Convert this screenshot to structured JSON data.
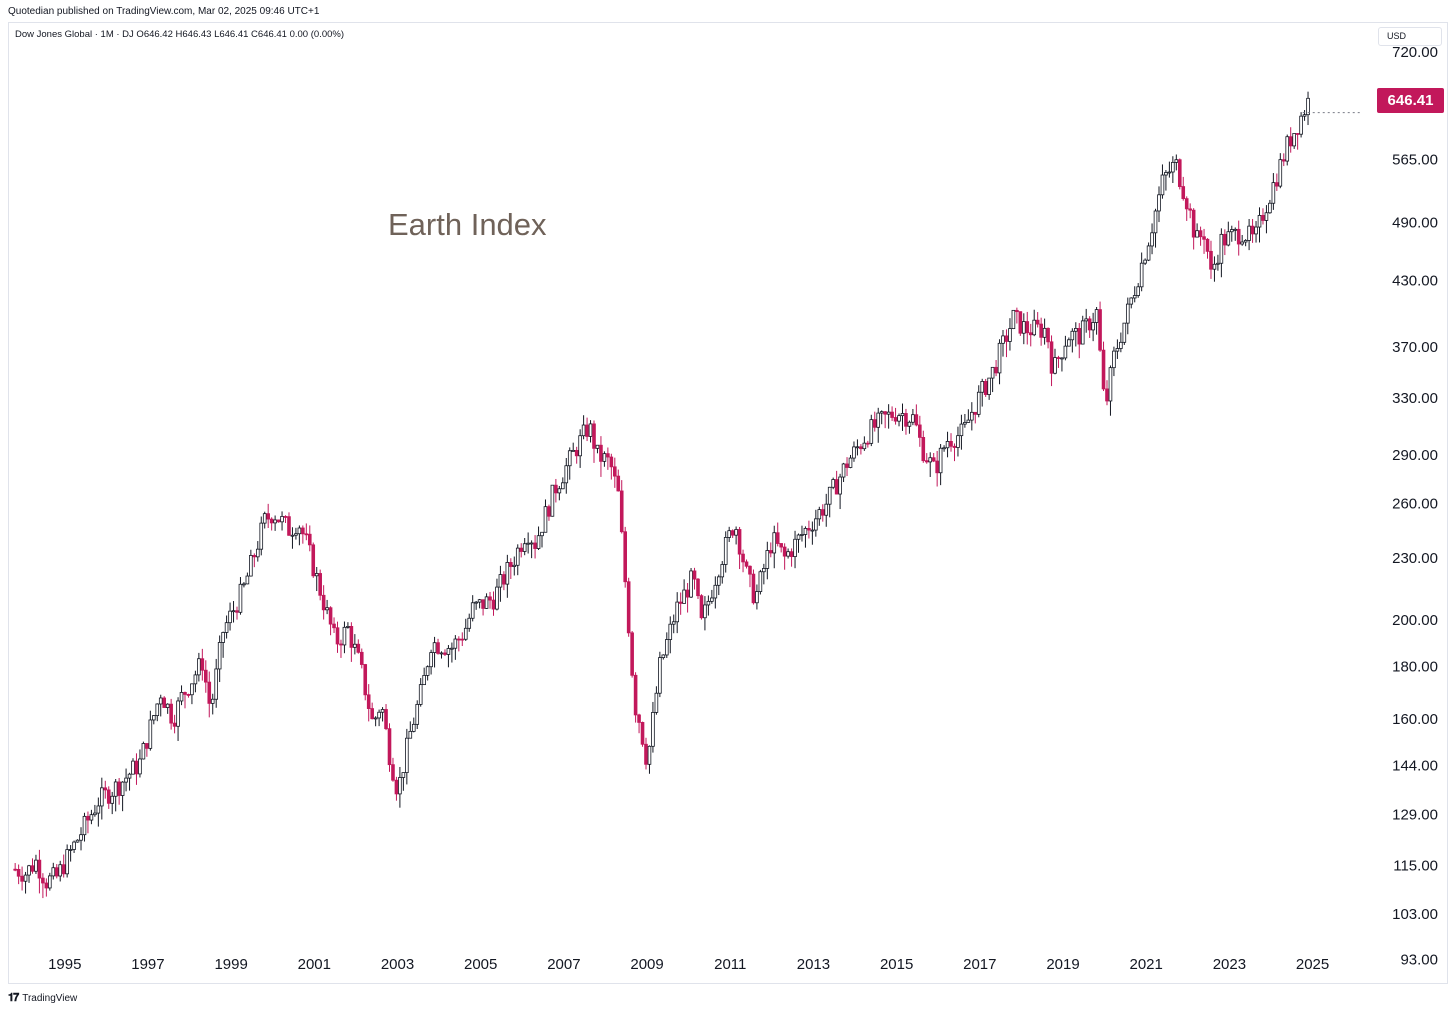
{
  "header": {
    "published": "Quotedian published on TradingView.com, Mar 02, 2025 09:46 UTC+1"
  },
  "legend": {
    "text": "Dow Jones Global · 1M · DJ  O646.42  H646.43  L646.41  C646.41  0.00 (0.00%)"
  },
  "currency": {
    "label": "USD"
  },
  "footer": {
    "brand": "TradingView",
    "logo_icon": "tradingview-logo-icon"
  },
  "colors": {
    "up": "#131722",
    "down": "#c2185b",
    "badge": "#c2185b",
    "annotation": "#6f6259"
  },
  "chart_data": {
    "type": "candlestick",
    "title": "",
    "annotation": "Earth Index",
    "y_scale": "log",
    "ylim": [
      88,
      770
    ],
    "xlim": [
      1993.9,
      2025.9
    ],
    "y_ticks": [
      "720.00",
      "646.41",
      "565.00",
      "490.00",
      "430.00",
      "370.00",
      "330.00",
      "290.00",
      "260.00",
      "230.00",
      "200.00",
      "180.00",
      "160.00",
      "144.00",
      "129.00",
      "115.00",
      "103.00",
      "93.00"
    ],
    "y_tick_values": [
      720,
      565,
      490,
      430,
      370,
      330,
      290,
      260,
      230,
      200,
      180,
      160,
      144,
      129,
      115,
      103,
      93
    ],
    "x_ticks": [
      "1995",
      "1997",
      "1999",
      "2001",
      "2003",
      "2005",
      "2007",
      "2009",
      "2011",
      "2013",
      "2015",
      "2017",
      "2019",
      "2021",
      "2023",
      "2025"
    ],
    "x_tick_values": [
      1995,
      1997,
      1999,
      2001,
      2003,
      2005,
      2007,
      2009,
      2011,
      2013,
      2015,
      2017,
      2019,
      2021,
      2023,
      2025
    ],
    "last_price": {
      "value": 646.41,
      "label": "646.41"
    },
    "series": [
      {
        "anchors": [
          [
            1994.0,
            114
          ],
          [
            1994.25,
            113
          ],
          [
            1994.5,
            116
          ],
          [
            1994.75,
            111
          ],
          [
            1995.0,
            112
          ],
          [
            1995.5,
            122
          ],
          [
            1996.0,
            133
          ],
          [
            1996.5,
            138
          ],
          [
            1997.0,
            145
          ],
          [
            1997.5,
            170
          ],
          [
            1997.8,
            160
          ],
          [
            1998.0,
            168
          ],
          [
            1998.5,
            182
          ],
          [
            1998.7,
            163
          ],
          [
            1999.0,
            195
          ],
          [
            1999.5,
            215
          ],
          [
            2000.0,
            250
          ],
          [
            2000.2,
            255
          ],
          [
            2000.6,
            245
          ],
          [
            2000.8,
            250
          ],
          [
            2001.0,
            238
          ],
          [
            2001.7,
            190
          ],
          [
            2002.0,
            196
          ],
          [
            2002.3,
            180
          ],
          [
            2002.6,
            158
          ],
          [
            2002.8,
            166
          ],
          [
            2003.0,
            148
          ],
          [
            2003.2,
            136
          ],
          [
            2003.5,
            155
          ],
          [
            2003.8,
            172
          ],
          [
            2004.0,
            190
          ],
          [
            2004.5,
            188
          ],
          [
            2004.8,
            195
          ],
          [
            2005.0,
            205
          ],
          [
            2005.5,
            210
          ],
          [
            2006.0,
            230
          ],
          [
            2006.3,
            245
          ],
          [
            2006.5,
            238
          ],
          [
            2007.0,
            270
          ],
          [
            2007.5,
            295
          ],
          [
            2007.8,
            310
          ],
          [
            2008.0,
            290
          ],
          [
            2008.3,
            285
          ],
          [
            2008.5,
            265
          ],
          [
            2008.7,
            210
          ],
          [
            2008.9,
            165
          ],
          [
            2009.0,
            160
          ],
          [
            2009.2,
            145
          ],
          [
            2009.5,
            180
          ],
          [
            2009.9,
            205
          ],
          [
            2010.3,
            220
          ],
          [
            2010.5,
            198
          ],
          [
            2010.9,
            225
          ],
          [
            2011.3,
            250
          ],
          [
            2011.6,
            220
          ],
          [
            2011.8,
            210
          ],
          [
            2012.2,
            240
          ],
          [
            2012.5,
            230
          ],
          [
            2013.0,
            245
          ],
          [
            2013.5,
            260
          ],
          [
            2014.0,
            285
          ],
          [
            2014.5,
            305
          ],
          [
            2014.9,
            315
          ],
          [
            2015.2,
            320
          ],
          [
            2015.6,
            315
          ],
          [
            2015.8,
            295
          ],
          [
            2016.1,
            280
          ],
          [
            2016.4,
            300
          ],
          [
            2016.8,
            305
          ],
          [
            2017.0,
            320
          ],
          [
            2017.5,
            350
          ],
          [
            2018.0,
            395
          ],
          [
            2018.3,
            385
          ],
          [
            2018.8,
            385
          ],
          [
            2018.95,
            350
          ],
          [
            2019.3,
            380
          ],
          [
            2019.6,
            380
          ],
          [
            2020.0,
            400
          ],
          [
            2020.2,
            320
          ],
          [
            2020.4,
            360
          ],
          [
            2020.9,
            420
          ],
          [
            2021.3,
            480
          ],
          [
            2021.6,
            540
          ],
          [
            2021.9,
            560
          ],
          [
            2022.2,
            510
          ],
          [
            2022.4,
            470
          ],
          [
            2022.6,
            480
          ],
          [
            2022.75,
            435
          ],
          [
            2023.0,
            470
          ],
          [
            2023.5,
            480
          ],
          [
            2023.8,
            470
          ],
          [
            2024.0,
            500
          ],
          [
            2024.3,
            540
          ],
          [
            2024.6,
            585
          ],
          [
            2024.9,
            620
          ],
          [
            2025.1,
            646
          ]
        ]
      }
    ]
  }
}
